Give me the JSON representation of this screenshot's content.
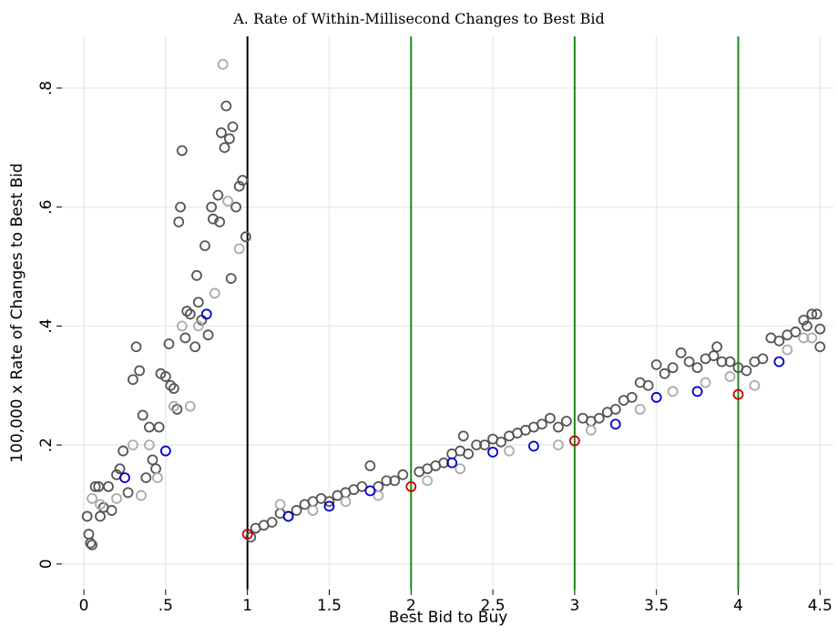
{
  "chart_data": {
    "type": "scatter",
    "title": "A. Rate of Within-Millisecond Changes to Best Bid",
    "x_label": "Best Bid to Buy",
    "y_label": "100,000 x Rate of Changes to Best Bid",
    "xlim": [
      -0.134,
      4.582
    ],
    "ylim": [
      -0.043,
      0.887
    ],
    "xticks": [
      0,
      {
        "value": 0.5,
        "label": ".5"
      },
      1,
      1.5,
      2,
      2.5,
      3,
      3.5,
      4,
      4.5
    ],
    "yticks": [
      0,
      {
        "value": 0.2,
        "label": ".2"
      },
      {
        "value": 0.4,
        "label": ".4"
      },
      {
        "value": 0.6,
        "label": ".6"
      },
      {
        "value": 0.8,
        "label": ".8"
      }
    ],
    "grid": true,
    "vlines": [
      {
        "value": 1,
        "color": "#000000"
      },
      {
        "value": 2,
        "color": "#1a8a1a"
      },
      {
        "value": 3,
        "color": "#1a8a1a"
      },
      {
        "value": 4,
        "color": "#1a8a1a"
      }
    ],
    "series": [
      {
        "color": "#555555",
        "x": [
          0.02,
          0.03,
          0.04,
          0.05,
          0.07,
          0.09,
          0.1,
          0.12,
          0.15,
          0.17,
          0.2,
          0.22,
          0.24,
          0.27,
          0.3,
          0.32,
          0.34,
          0.36,
          0.38,
          0.4,
          0.42,
          0.44,
          0.46,
          0.47,
          0.5,
          0.52,
          0.53,
          0.55,
          0.57,
          0.58,
          0.59,
          0.6,
          0.62,
          0.63,
          0.65,
          0.68,
          0.69,
          0.7,
          0.72,
          0.74,
          0.76,
          0.78,
          0.79,
          0.82,
          0.83,
          0.84,
          0.86,
          0.87,
          0.89,
          0.9,
          0.91,
          0.93,
          0.95,
          0.97,
          0.99,
          1.02,
          1.05,
          1.1,
          1.15,
          1.2,
          1.25,
          1.3,
          1.35,
          1.4,
          1.45,
          1.5,
          1.55,
          1.6,
          1.65,
          1.7,
          1.75,
          1.8,
          1.85,
          1.9,
          1.95,
          2.05,
          2.1,
          2.15,
          2.2,
          2.25,
          2.3,
          2.32,
          2.35,
          2.4,
          2.45,
          2.5,
          2.55,
          2.6,
          2.65,
          2.7,
          2.75,
          2.8,
          2.85,
          2.9,
          2.95,
          3.05,
          3.1,
          3.15,
          3.2,
          3.25,
          3.3,
          3.35,
          3.4,
          3.45,
          3.5,
          3.55,
          3.6,
          3.65,
          3.7,
          3.75,
          3.8,
          3.85,
          3.87,
          3.9,
          3.95,
          4.0,
          4.05,
          4.1,
          4.15,
          4.2,
          4.25,
          4.3,
          4.35,
          4.4,
          4.42,
          4.45,
          4.48,
          4.5,
          4.5
        ],
        "values": [
          0.08,
          0.05,
          0.035,
          0.032,
          0.13,
          0.13,
          0.08,
          0.095,
          0.13,
          0.09,
          0.15,
          0.16,
          0.19,
          0.12,
          0.31,
          0.365,
          0.325,
          0.25,
          0.145,
          0.23,
          0.175,
          0.16,
          0.23,
          0.32,
          0.315,
          0.37,
          0.3,
          0.295,
          0.26,
          0.575,
          0.6,
          0.695,
          0.38,
          0.425,
          0.42,
          0.365,
          0.485,
          0.44,
          0.41,
          0.535,
          0.385,
          0.6,
          0.58,
          0.62,
          0.575,
          0.725,
          0.7,
          0.77,
          0.715,
          0.48,
          0.735,
          0.6,
          0.635,
          0.645,
          0.55,
          0.045,
          0.06,
          0.065,
          0.07,
          0.085,
          0.08,
          0.09,
          0.1,
          0.105,
          0.11,
          0.105,
          0.115,
          0.12,
          0.125,
          0.13,
          0.165,
          0.13,
          0.14,
          0.14,
          0.15,
          0.155,
          0.16,
          0.165,
          0.17,
          0.185,
          0.19,
          0.215,
          0.185,
          0.2,
          0.2,
          0.21,
          0.205,
          0.215,
          0.22,
          0.225,
          0.23,
          0.235,
          0.245,
          0.23,
          0.24,
          0.245,
          0.24,
          0.245,
          0.255,
          0.26,
          0.275,
          0.28,
          0.305,
          0.3,
          0.335,
          0.32,
          0.33,
          0.355,
          0.34,
          0.33,
          0.345,
          0.35,
          0.365,
          0.34,
          0.34,
          0.33,
          0.325,
          0.34,
          0.345,
          0.38,
          0.375,
          0.385,
          0.39,
          0.41,
          0.4,
          0.42,
          0.42,
          0.365,
          0.395
        ]
      },
      {
        "color": "#aaaaaa",
        "x": [
          0.05,
          0.1,
          0.2,
          0.3,
          0.35,
          0.4,
          0.45,
          0.55,
          0.6,
          0.65,
          0.7,
          0.8,
          0.85,
          0.88,
          0.95,
          1.2,
          1.4,
          1.6,
          1.8,
          2.1,
          2.3,
          2.6,
          2.9,
          3.1,
          3.4,
          3.6,
          3.8,
          3.95,
          4.1,
          4.3,
          4.4,
          4.45
        ],
        "values": [
          0.11,
          0.1,
          0.11,
          0.2,
          0.115,
          0.2,
          0.145,
          0.265,
          0.4,
          0.265,
          0.4,
          0.455,
          0.84,
          0.61,
          0.53,
          0.1,
          0.09,
          0.105,
          0.115,
          0.14,
          0.16,
          0.19,
          0.2,
          0.225,
          0.26,
          0.29,
          0.305,
          0.315,
          0.3,
          0.36,
          0.38,
          0.38
        ]
      },
      {
        "color": "#0000cc",
        "x": [
          0.25,
          0.5,
          0.75,
          1.25,
          1.5,
          1.75,
          2.25,
          2.5,
          2.75,
          3.25,
          3.5,
          3.75,
          4.25
        ],
        "values": [
          0.145,
          0.19,
          0.42,
          0.08,
          0.097,
          0.123,
          0.17,
          0.188,
          0.198,
          0.235,
          0.28,
          0.29,
          0.34
        ]
      },
      {
        "color": "#cc0000",
        "x": [
          1,
          2,
          3,
          4
        ],
        "values": [
          0.05,
          0.13,
          0.207,
          0.285
        ]
      }
    ]
  }
}
